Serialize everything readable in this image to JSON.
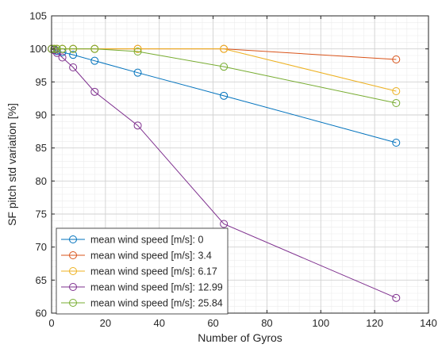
{
  "chart_data": {
    "type": "line",
    "xlabel": "Number of Gyros",
    "ylabel": "SF pitch std variation [%]",
    "xlim": [
      0,
      140
    ],
    "ylim": [
      60,
      105
    ],
    "xticks": [
      0,
      20,
      40,
      60,
      80,
      100,
      120,
      140
    ],
    "yticks": [
      60,
      65,
      70,
      75,
      80,
      85,
      90,
      95,
      100,
      105
    ],
    "grid": true,
    "minor_grid": true,
    "marker": "circle",
    "legend_position": "bottom-left",
    "x": [
      0,
      1,
      2,
      4,
      8,
      16,
      32,
      64,
      128
    ],
    "series": [
      {
        "name": "mean wind speed [m/s]: 0",
        "color": "#0072BD",
        "values": [
          100,
          99.9,
          99.7,
          99.5,
          99.1,
          98.2,
          96.4,
          92.9,
          85.8
        ]
      },
      {
        "name": "mean wind speed [m/s]: 3.4",
        "color": "#D95319",
        "values": [
          100,
          100,
          100,
          100,
          100,
          100,
          100,
          100,
          98.4
        ]
      },
      {
        "name": "mean wind speed [m/s]: 6.17",
        "color": "#EDB120",
        "values": [
          100,
          100,
          100,
          100,
          100,
          100,
          100,
          100,
          93.6
        ]
      },
      {
        "name": "mean wind speed [m/s]: 12.99",
        "color": "#7E2F8E",
        "values": [
          100,
          99.8,
          99.4,
          98.7,
          97.2,
          93.5,
          88.4,
          73.5,
          62.3
        ]
      },
      {
        "name": "mean wind speed [m/s]: 25.84",
        "color": "#77AC30",
        "values": [
          100,
          100,
          100,
          100,
          100,
          100,
          99.6,
          97.3,
          91.8
        ]
      }
    ]
  }
}
